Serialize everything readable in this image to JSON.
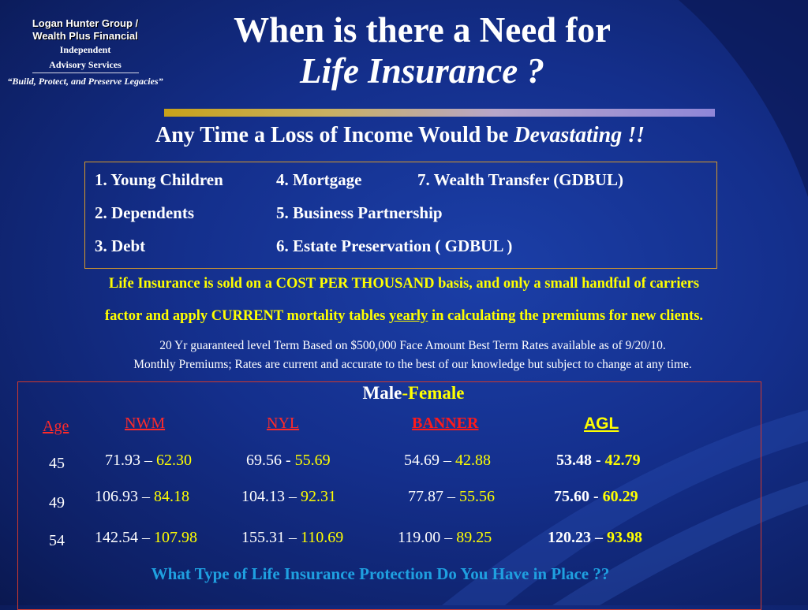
{
  "brand": {
    "company_line1": "Logan Hunter Group /",
    "company_line2": "Wealth Plus Financial",
    "sub_line1": "Independent",
    "sub_line2": "Advisory Services",
    "tagline": "“Build, Protect, and Preserve Legacies”"
  },
  "title": {
    "line1": "When is there a Need for",
    "line2": "Life Insurance ?"
  },
  "headline": {
    "text": "Any Time a Loss of Income Would be",
    "emphasis": "Devastating !!"
  },
  "needs": [
    "1. Young Children",
    "2. Dependents",
    "3. Debt",
    "4. Mortgage",
    "5. Business Partnership",
    "6. Estate Preservation  ( GDBUL )",
    "7. Wealth Transfer (GDBUL)"
  ],
  "notes": {
    "yellow_line1": "Life Insurance is sold on a COST PER THOUSAND basis, and only a small handful of carriers",
    "yellow_line2_a": "factor and apply CURRENT mortality tables ",
    "yellow_line2_u": "yearly",
    "yellow_line2_b": " in calculating the premiums for new clients.",
    "white_line1": "20 Yr guaranteed level Term  Based on $500,000 Face Amount  Best Term Rates available as of  9/20/10.",
    "white_line2": "Monthly Premiums; Rates are current and accurate to the best of our knowledge but subject to change at any time."
  },
  "rates": {
    "heading_male": "Male",
    "heading_female": "-Female",
    "headers": {
      "age": "Age",
      "nwm": "NWM",
      "nyl": "NYL",
      "banner": "BANNER ",
      "agl": "AGL"
    },
    "sep_dash": " – ",
    "rows": [
      {
        "age": "45",
        "nwm": [
          "71.93 –",
          " 62.30"
        ],
        "nyl": [
          "69.56 -",
          " 55.69"
        ],
        "banner": [
          "54.69 –",
          " 42.88"
        ],
        "agl": [
          "53.48 -",
          " 42.79"
        ]
      },
      {
        "age": "49",
        "nwm": [
          "106.93 –",
          " 84.18"
        ],
        "nyl": [
          "104.13 –",
          " 92.31"
        ],
        "banner": [
          "77.87 –",
          " 55.56"
        ],
        "agl": [
          "75.60 -",
          "  60.29"
        ]
      },
      {
        "age": "54",
        "nwm": [
          "142.54 –",
          " 107.98"
        ],
        "nyl": [
          "155.31 –",
          " 110.69"
        ],
        "banner": [
          "119.00 –",
          " 89.25"
        ],
        "agl": [
          "120.23 –",
          " 93.98"
        ]
      }
    ],
    "question": "What Type of Life Insurance Protection Do You Have in Place ??"
  },
  "colors": {
    "yellow": "#ffff00",
    "red": "#ff2a2a",
    "cyan": "#1fa0e0",
    "box_orange": "#d79a2a",
    "box_red": "#d0392e"
  }
}
